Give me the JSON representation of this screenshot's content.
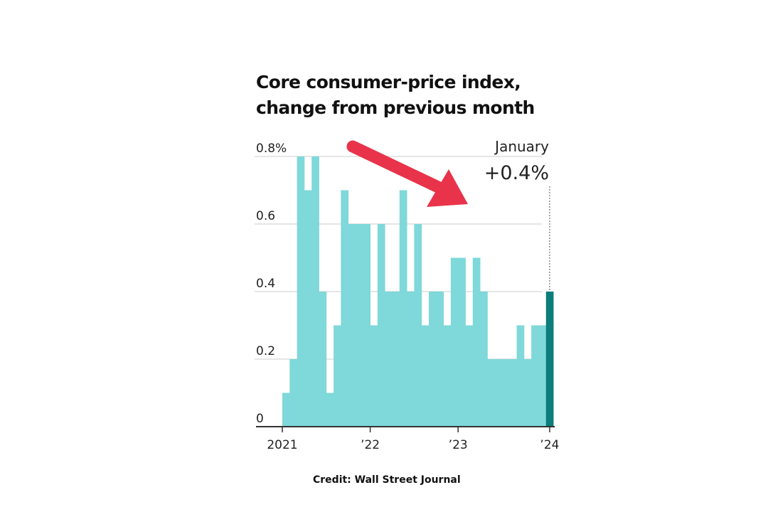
{
  "chart_data": {
    "type": "bar",
    "title": "Core consumer-price index, change from previous month",
    "xlabel": "",
    "ylabel": "",
    "ylim": [
      0,
      0.8
    ],
    "y_ticks": [
      {
        "value": 0,
        "label": "0"
      },
      {
        "value": 0.2,
        "label": "0.2"
      },
      {
        "value": 0.4,
        "label": "0.4"
      },
      {
        "value": 0.6,
        "label": "0.6"
      },
      {
        "value": 0.8,
        "label": "0.8%"
      }
    ],
    "x_ticks": [
      {
        "label": "2021",
        "index": 0
      },
      {
        "label": "’22",
        "index": 12
      },
      {
        "label": "’23",
        "index": 24
      },
      {
        "label": "’24",
        "index": 36
      }
    ],
    "grid": true,
    "categories": [
      "2021-01",
      "2021-02",
      "2021-03",
      "2021-04",
      "2021-05",
      "2021-06",
      "2021-07",
      "2021-08",
      "2021-09",
      "2021-10",
      "2021-11",
      "2021-12",
      "2022-01",
      "2022-02",
      "2022-03",
      "2022-04",
      "2022-05",
      "2022-06",
      "2022-07",
      "2022-08",
      "2022-09",
      "2022-10",
      "2022-11",
      "2022-12",
      "2023-01",
      "2023-02",
      "2023-03",
      "2023-04",
      "2023-05",
      "2023-06",
      "2023-07",
      "2023-08",
      "2023-09",
      "2023-10",
      "2023-11",
      "2023-12",
      "2024-01"
    ],
    "values": [
      0.1,
      0.2,
      0.8,
      0.7,
      0.8,
      0.4,
      0.1,
      0.3,
      0.7,
      0.6,
      0.6,
      0.6,
      0.3,
      0.6,
      0.4,
      0.4,
      0.7,
      0.4,
      0.6,
      0.3,
      0.4,
      0.4,
      0.3,
      0.5,
      0.5,
      0.3,
      0.5,
      0.4,
      0.2,
      0.2,
      0.2,
      0.2,
      0.3,
      0.2,
      0.3,
      0.3,
      0.4
    ],
    "highlight_index": 36,
    "annotation": {
      "label": "January",
      "value": "+0.4%"
    },
    "colors": {
      "bars": "#7fd8d9",
      "highlight": "#0b7d7a",
      "grid": "#d6d6d6",
      "axis": "#333333",
      "arrow": "#e8334a"
    }
  },
  "credit": "Credit: Wall Street Journal"
}
